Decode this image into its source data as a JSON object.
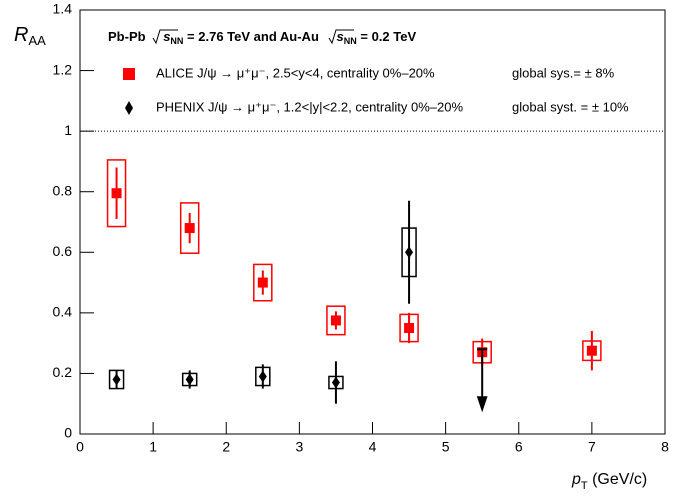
{
  "chart_data": {
    "type": "errorbar",
    "title": [
      "Pb-Pb",
      "s",
      "NN",
      "= 2.76 TeV and Au-Au",
      "s",
      "NN",
      "= 0.2 TeV"
    ],
    "ylabel": {
      "main": "R",
      "sub": "AA"
    },
    "xlabel": {
      "main": "p",
      "sub": "T",
      "unit": "(GeV/c)"
    },
    "xlim": [
      0,
      8
    ],
    "xticks": [
      0,
      1,
      2,
      3,
      4,
      5,
      6,
      7,
      8
    ],
    "ylim": [
      0,
      1.4
    ],
    "yticks": [
      0,
      0.2,
      0.4,
      0.6,
      0.8,
      1,
      1.2,
      1.4
    ],
    "ref_line": 1,
    "series": [
      {
        "name": "ALICE J/ψ → μ⁺μ⁻, 2.5<y<4, centrality 0%–20%",
        "global_sys": "global sys.= ± 8%",
        "color": "#ff0000",
        "marker": "square",
        "x": [
          0.5,
          1.5,
          2.5,
          3.5,
          4.5,
          5.5,
          7
        ],
        "values": [
          0.795,
          0.68,
          0.5,
          0.375,
          0.35,
          0.27,
          0.275
        ],
        "errors": [
          0.085,
          0.05,
          0.04,
          0.03,
          0.05,
          0.045,
          0.065
        ],
        "sys": [
          0.11,
          0.083,
          0.06,
          0.047,
          0.045,
          0.035,
          0.032
        ]
      },
      {
        "name": "PHENIX J/ψ → μ⁺μ⁻, 1.2<|y|<2.2, centrality 0%–20%",
        "global_sys": "global syst. = ± 10%",
        "color": "#000000",
        "marker": "diamond",
        "x": [
          0.5,
          1.5,
          2.5,
          3.5,
          4.5
        ],
        "values": [
          0.18,
          0.18,
          0.19,
          0.17,
          0.6
        ],
        "errors": [
          0.03,
          0.03,
          0.04,
          0.07,
          0.17
        ],
        "sys": [
          0.03,
          0.02,
          0.03,
          0.02,
          0.08
        ],
        "upper_limits": [
          {
            "x": 5.5,
            "value": 0.28
          }
        ]
      }
    ]
  }
}
